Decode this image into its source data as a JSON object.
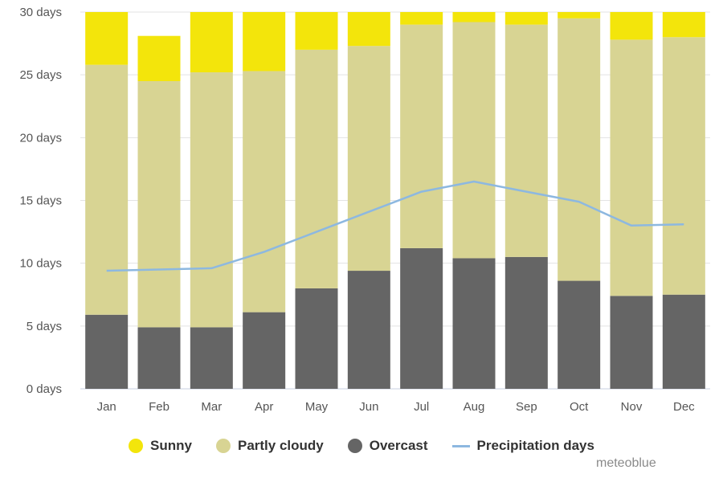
{
  "chart_data": {
    "type": "bar",
    "stacked": true,
    "categories": [
      "Jan",
      "Feb",
      "Mar",
      "Apr",
      "May",
      "Jun",
      "Jul",
      "Aug",
      "Sep",
      "Oct",
      "Nov",
      "Dec"
    ],
    "series": [
      {
        "name": "Overcast",
        "color": "#656565",
        "values": [
          5.9,
          4.9,
          4.9,
          6.1,
          8.0,
          9.4,
          11.2,
          10.4,
          10.5,
          8.6,
          7.4,
          7.5
        ]
      },
      {
        "name": "Partly cloudy",
        "color": "#d8d493",
        "values": [
          19.9,
          19.6,
          20.3,
          19.2,
          19.0,
          17.9,
          17.8,
          18.8,
          18.5,
          20.9,
          20.4,
          20.5
        ]
      },
      {
        "name": "Sunny",
        "color": "#f3e50b",
        "values": [
          5.2,
          3.6,
          5.8,
          4.7,
          4.0,
          3.7,
          2.0,
          1.8,
          2.0,
          0.5,
          3.2,
          3.0
        ]
      }
    ],
    "line_series": {
      "name": "Precipitation days",
      "color": "#8db8e0",
      "values": [
        9.4,
        9.5,
        9.6,
        10.9,
        12.5,
        14.1,
        15.7,
        16.5,
        15.7,
        14.9,
        13.0,
        13.1
      ]
    },
    "ylim": [
      0,
      30
    ],
    "yticks": [
      0,
      5,
      10,
      15,
      20,
      25,
      30
    ],
    "ytick_labels": [
      "0 days",
      "5 days",
      "10 days",
      "15 days",
      "20 days",
      "25 days",
      "30 days"
    ],
    "grid": true,
    "legend_position": "bottom"
  },
  "legend": {
    "items": [
      {
        "label": "Sunny",
        "color": "#f3e50b",
        "kind": "dot"
      },
      {
        "label": "Partly cloudy",
        "color": "#d8d493",
        "kind": "dot"
      },
      {
        "label": "Overcast",
        "color": "#656565",
        "kind": "dot"
      },
      {
        "label": "Precipitation days",
        "color": "#8db8e0",
        "kind": "line"
      }
    ]
  },
  "credit": "meteoblue"
}
